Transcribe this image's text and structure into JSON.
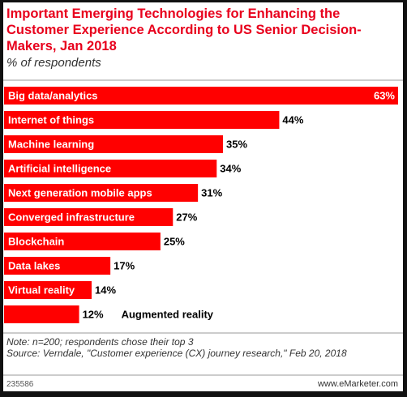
{
  "chart_data": {
    "type": "bar",
    "orientation": "horizontal",
    "title": "Important Emerging Technologies for Enhancing the Customer Experience According to US Senior Decision-Makers, Jan 2018",
    "subtitle": "% of respondents",
    "categories": [
      "Big data/analytics",
      "Internet of things",
      "Machine learning",
      "Artificial intelligence",
      "Next generation mobile apps",
      "Converged infrastructure",
      "Blockchain",
      "Data lakes",
      "Virtual reality",
      "Augmented reality"
    ],
    "values": [
      63,
      44,
      35,
      34,
      31,
      27,
      25,
      17,
      14,
      12
    ],
    "value_labels": [
      "63%",
      "44%",
      "35%",
      "34%",
      "31%",
      "27%",
      "25%",
      "17%",
      "14%",
      "12%"
    ],
    "color": "#ff0000",
    "note": "Note: n=200; respondents chose their top 3",
    "source": "Source: Verndale, \"Customer experience (CX) journey research,\" Feb 20, 2018",
    "footer_id": "235586",
    "footer_site": "www.eMarketer.com"
  }
}
